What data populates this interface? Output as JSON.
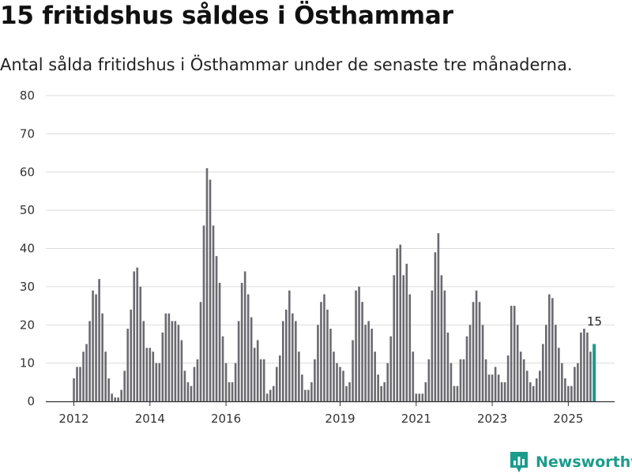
{
  "title": "15 fritidshus såldes i Östhammar",
  "subtitle": "Antal sålda fritidshus i Östhammar under de senaste tre månaderna.",
  "brand": {
    "name": "Newsworthy"
  },
  "colors": {
    "bar": "#6b6a70",
    "highlight": "#1a9c8c",
    "grid": "#dcdcdc",
    "axis": "#333333"
  },
  "chart_data": {
    "type": "bar",
    "title": "15 fritidshus såldes i Östhammar",
    "xlabel": "",
    "ylabel": "",
    "ylim": [
      0,
      80
    ],
    "yticks": [
      0,
      10,
      20,
      30,
      40,
      50,
      60,
      70,
      80
    ],
    "x_start": "2012-01",
    "x_tick_labels": [
      {
        "label": "2012",
        "index": 0
      },
      {
        "label": "2014",
        "index": 24
      },
      {
        "label": "2016",
        "index": 48
      },
      {
        "label": "2019",
        "index": 84
      },
      {
        "label": "2021",
        "index": 108
      },
      {
        "label": "2023",
        "index": 132
      },
      {
        "label": "2025",
        "index": 156
      }
    ],
    "values": [
      6,
      9,
      9,
      13,
      15,
      21,
      29,
      28,
      32,
      23,
      13,
      6,
      2,
      1,
      1,
      3,
      8,
      19,
      24,
      34,
      35,
      30,
      21,
      14,
      14,
      13,
      10,
      10,
      18,
      23,
      23,
      21,
      21,
      20,
      16,
      8,
      5,
      4,
      9,
      11,
      26,
      46,
      61,
      58,
      46,
      38,
      31,
      17,
      10,
      5,
      5,
      10,
      21,
      31,
      34,
      28,
      22,
      14,
      16,
      11,
      11,
      2,
      3,
      4,
      9,
      12,
      21,
      24,
      29,
      23,
      21,
      13,
      7,
      3,
      3,
      5,
      11,
      20,
      26,
      28,
      24,
      19,
      13,
      10,
      9,
      8,
      4,
      5,
      16,
      29,
      30,
      26,
      20,
      21,
      19,
      13,
      7,
      4,
      5,
      10,
      17,
      33,
      40,
      41,
      33,
      36,
      28,
      13,
      2,
      2,
      2,
      5,
      11,
      29,
      39,
      44,
      33,
      29,
      18,
      10,
      4,
      4,
      11,
      11,
      17,
      20,
      26,
      29,
      26,
      20,
      11,
      7,
      7,
      9,
      7,
      5,
      5,
      12,
      25,
      25,
      20,
      13,
      11,
      8,
      5,
      4,
      6,
      8,
      15,
      20,
      28,
      27,
      20,
      14,
      10,
      6,
      4,
      4,
      9,
      10,
      18,
      19,
      18,
      13,
      15
    ],
    "highlight": {
      "index": 164,
      "value": 15,
      "label": "15"
    }
  }
}
